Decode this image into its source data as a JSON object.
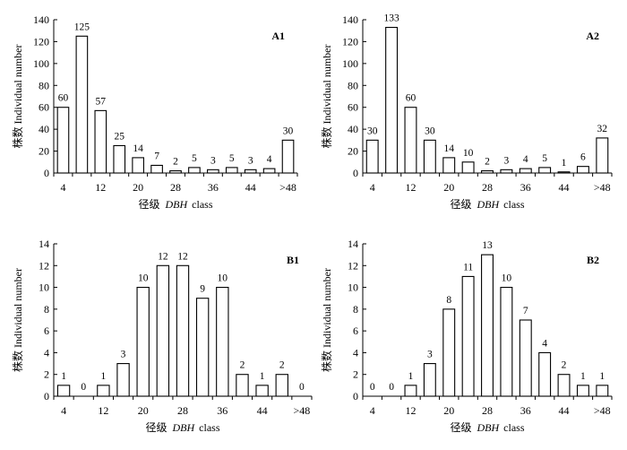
{
  "chart_data": [
    {
      "id": "A1",
      "type": "bar",
      "panel_label": "A1",
      "categories": [
        "4",
        "8",
        "12",
        "16",
        "20",
        "24",
        "28",
        "32",
        "36",
        "40",
        "44",
        "48",
        ">48"
      ],
      "values": [
        60,
        125,
        57,
        25,
        14,
        7,
        2,
        5,
        3,
        5,
        3,
        4,
        30
      ],
      "xticks": [
        "4",
        "12",
        "20",
        "28",
        "36",
        "44",
        ">48"
      ],
      "ylim": [
        0,
        140
      ],
      "yticks": [
        0,
        20,
        40,
        60,
        80,
        100,
        120,
        140
      ],
      "ylabel": "株数 Individual number",
      "xlabel_cn": "径级",
      "xlabel_it": "DBH",
      "xlabel_en": "class"
    },
    {
      "id": "A2",
      "type": "bar",
      "panel_label": "A2",
      "categories": [
        "4",
        "8",
        "12",
        "16",
        "20",
        "24",
        "28",
        "32",
        "36",
        "40",
        "44",
        "48",
        ">48"
      ],
      "values": [
        30,
        133,
        60,
        30,
        14,
        10,
        2,
        3,
        4,
        5,
        1,
        6,
        32
      ],
      "xticks": [
        "4",
        "12",
        "20",
        "28",
        "36",
        "44",
        ">48"
      ],
      "ylim": [
        0,
        140
      ],
      "yticks": [
        0,
        20,
        40,
        60,
        80,
        100,
        120,
        140
      ],
      "ylabel": "株数 Individual number",
      "xlabel_cn": "径级",
      "xlabel_it": "DBH",
      "xlabel_en": "class"
    },
    {
      "id": "B1",
      "type": "bar",
      "panel_label": "B1",
      "categories": [
        "4",
        "8",
        "12",
        "16",
        "20",
        "24",
        "28",
        "32",
        "36",
        "40",
        "44",
        "48",
        ">48"
      ],
      "values": [
        1,
        0,
        1,
        3,
        10,
        12,
        12,
        9,
        10,
        2,
        1,
        2,
        0
      ],
      "xticks": [
        "4",
        "12",
        "20",
        "28",
        "36",
        "44",
        ">48"
      ],
      "ylim": [
        0,
        14
      ],
      "yticks": [
        0,
        2,
        4,
        6,
        8,
        10,
        12,
        14
      ],
      "ylabel": "株数 Individual number",
      "xlabel_cn": "径级",
      "xlabel_it": "DBH",
      "xlabel_en": "class"
    },
    {
      "id": "B2",
      "type": "bar",
      "panel_label": "B2",
      "categories": [
        "4",
        "8",
        "12",
        "16",
        "20",
        "24",
        "28",
        "32",
        "36",
        "40",
        "44",
        "48",
        ">48"
      ],
      "values": [
        0,
        0,
        1,
        3,
        8,
        11,
        13,
        10,
        7,
        4,
        2,
        1,
        1
      ],
      "xticks": [
        "4",
        "12",
        "20",
        "28",
        "36",
        "44",
        ">48"
      ],
      "ylim": [
        0,
        14
      ],
      "yticks": [
        0,
        2,
        4,
        6,
        8,
        10,
        12,
        14
      ],
      "ylabel": "株数 Individual number",
      "xlabel_cn": "径级",
      "xlabel_it": "DBH",
      "xlabel_en": "class"
    }
  ]
}
